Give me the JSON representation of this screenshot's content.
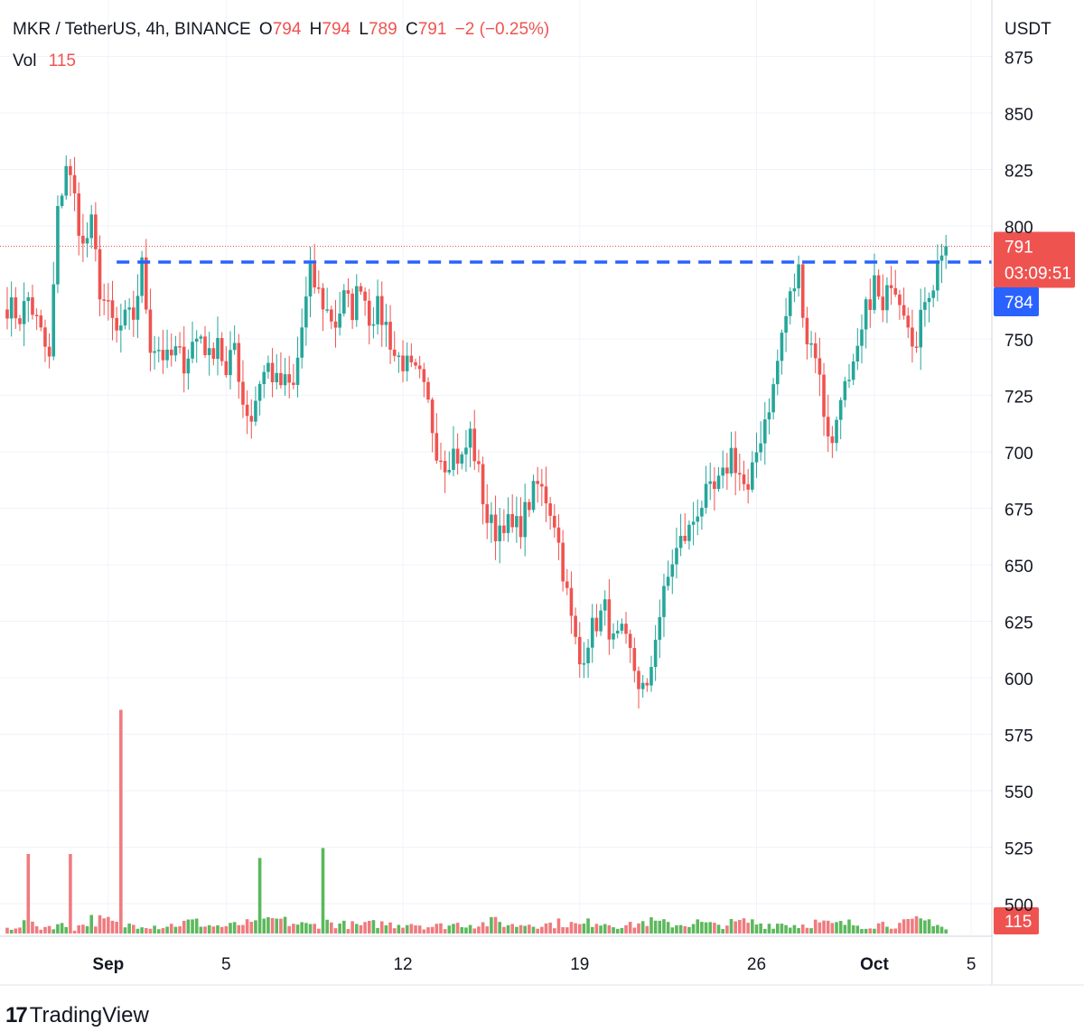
{
  "legend": {
    "symbol": "MKR / TetherUS, 4h, BINANCE",
    "o_label": "O",
    "o_value": "794",
    "h_label": "H",
    "h_value": "794",
    "l_label": "L",
    "l_value": "789",
    "c_label": "C",
    "c_value": "791",
    "change": "−2 (−0.25%)",
    "vol_label": "Vol",
    "vol_value": "115"
  },
  "footer": {
    "logo_mark": "17",
    "brand": "TradingView"
  },
  "colors": {
    "up": "#26a69a",
    "down": "#ef5350",
    "up_vol": "#5cb85c",
    "down_vol": "#ef7b7f",
    "dashed_line": "#2962ff",
    "grid": "#f0f3fa",
    "text": "#131722"
  },
  "chart_data": {
    "type": "candlestick",
    "currency_label": "USDT",
    "y_ticks": [
      875,
      850,
      825,
      800,
      750,
      725,
      700,
      675,
      650,
      625,
      600,
      575,
      550,
      525,
      500
    ],
    "x_ticks": [
      {
        "label": "Sep",
        "index": 24,
        "bold": true
      },
      {
        "label": "5",
        "index": 52,
        "bold": false
      },
      {
        "label": "12",
        "index": 94,
        "bold": false
      },
      {
        "label": "19",
        "index": 136,
        "bold": false
      },
      {
        "label": "26",
        "index": 178,
        "bold": false
      },
      {
        "label": "Oct",
        "index": 206,
        "bold": true
      },
      {
        "label": "5",
        "index": 229,
        "bold": false
      }
    ],
    "last_price": {
      "value": 791,
      "label": "791",
      "countdown": "03:09:51"
    },
    "dashed_level": {
      "value": 784,
      "label": "784"
    },
    "volume_last_label": "115",
    "close_path": [
      [
        0,
        765
      ],
      [
        3,
        760
      ],
      [
        5,
        768
      ],
      [
        8,
        752
      ],
      [
        10,
        740
      ],
      [
        12,
        805
      ],
      [
        14,
        828
      ],
      [
        16,
        812
      ],
      [
        18,
        790
      ],
      [
        20,
        800
      ],
      [
        22,
        772
      ],
      [
        24,
        762
      ],
      [
        26,
        752
      ],
      [
        28,
        758
      ],
      [
        30,
        760
      ],
      [
        32,
        782
      ],
      [
        34,
        748
      ],
      [
        36,
        746
      ],
      [
        38,
        740
      ],
      [
        40,
        744
      ],
      [
        42,
        740
      ],
      [
        44,
        748
      ],
      [
        46,
        752
      ],
      [
        48,
        741
      ],
      [
        50,
        752
      ],
      [
        52,
        732
      ],
      [
        54,
        748
      ],
      [
        56,
        722
      ],
      [
        58,
        715
      ],
      [
        60,
        732
      ],
      [
        62,
        738
      ],
      [
        64,
        730
      ],
      [
        66,
        730
      ],
      [
        68,
        728
      ],
      [
        70,
        755
      ],
      [
        72,
        778
      ],
      [
        74,
        770
      ],
      [
        76,
        762
      ],
      [
        78,
        757
      ],
      [
        80,
        768
      ],
      [
        82,
        763
      ],
      [
        84,
        776
      ],
      [
        86,
        760
      ],
      [
        88,
        763
      ],
      [
        90,
        756
      ],
      [
        92,
        743
      ],
      [
        94,
        740
      ],
      [
        96,
        735
      ],
      [
        98,
        732
      ],
      [
        100,
        720
      ],
      [
        102,
        702
      ],
      [
        104,
        696
      ],
      [
        106,
        700
      ],
      [
        108,
        696
      ],
      [
        110,
        708
      ],
      [
        112,
        690
      ],
      [
        114,
        670
      ],
      [
        116,
        665
      ],
      [
        118,
        670
      ],
      [
        120,
        665
      ],
      [
        122,
        668
      ],
      [
        124,
        678
      ],
      [
        126,
        685
      ],
      [
        128,
        680
      ],
      [
        130,
        670
      ],
      [
        132,
        648
      ],
      [
        134,
        625
      ],
      [
        136,
        606
      ],
      [
        138,
        618
      ],
      [
        140,
        625
      ],
      [
        142,
        630
      ],
      [
        144,
        615
      ],
      [
        146,
        618
      ],
      [
        148,
        610
      ],
      [
        150,
        598
      ],
      [
        152,
        592
      ],
      [
        154,
        620
      ],
      [
        156,
        636
      ],
      [
        158,
        652
      ],
      [
        160,
        660
      ],
      [
        162,
        665
      ],
      [
        164,
        675
      ],
      [
        166,
        680
      ],
      [
        168,
        682
      ],
      [
        170,
        688
      ],
      [
        172,
        700
      ],
      [
        174,
        690
      ],
      [
        176,
        680
      ],
      [
        178,
        700
      ],
      [
        180,
        715
      ],
      [
        182,
        728
      ],
      [
        184,
        752
      ],
      [
        186,
        768
      ],
      [
        188,
        780
      ],
      [
        190,
        750
      ],
      [
        192,
        745
      ],
      [
        194,
        718
      ],
      [
        196,
        702
      ],
      [
        198,
        728
      ],
      [
        200,
        728
      ],
      [
        202,
        742
      ],
      [
        204,
        762
      ],
      [
        206,
        775
      ],
      [
        208,
        760
      ],
      [
        210,
        778
      ],
      [
        212,
        770
      ],
      [
        214,
        760
      ],
      [
        216,
        745
      ],
      [
        218,
        770
      ],
      [
        220,
        775
      ],
      [
        222,
        790
      ],
      [
        223,
        791
      ]
    ],
    "volume_path": [
      [
        0,
        5
      ],
      [
        4,
        10
      ],
      [
        8,
        6
      ],
      [
        12,
        9
      ],
      [
        16,
        5
      ],
      [
        20,
        14
      ],
      [
        24,
        12
      ],
      [
        28,
        8
      ],
      [
        32,
        10
      ],
      [
        36,
        7
      ],
      [
        40,
        9
      ],
      [
        44,
        12
      ],
      [
        48,
        8
      ],
      [
        52,
        7
      ],
      [
        56,
        10
      ],
      [
        60,
        9
      ],
      [
        64,
        14
      ],
      [
        68,
        10
      ],
      [
        72,
        8
      ],
      [
        76,
        11
      ],
      [
        80,
        9
      ],
      [
        84,
        8
      ],
      [
        88,
        10
      ],
      [
        92,
        9
      ],
      [
        96,
        11
      ],
      [
        100,
        7
      ],
      [
        104,
        8
      ],
      [
        108,
        10
      ],
      [
        112,
        9
      ],
      [
        116,
        12
      ],
      [
        120,
        8
      ],
      [
        124,
        10
      ],
      [
        128,
        9
      ],
      [
        132,
        11
      ],
      [
        136,
        8
      ],
      [
        140,
        13
      ],
      [
        144,
        9
      ],
      [
        148,
        8
      ],
      [
        152,
        12
      ],
      [
        156,
        10
      ],
      [
        160,
        9
      ],
      [
        164,
        11
      ],
      [
        168,
        8
      ],
      [
        172,
        10
      ],
      [
        176,
        12
      ],
      [
        180,
        9
      ],
      [
        184,
        10
      ],
      [
        188,
        8
      ],
      [
        192,
        11
      ],
      [
        196,
        9
      ],
      [
        200,
        10
      ],
      [
        204,
        8
      ],
      [
        208,
        10
      ],
      [
        212,
        9
      ],
      [
        216,
        12
      ],
      [
        220,
        13
      ],
      [
        223,
        4
      ]
    ],
    "spikes": [
      {
        "index": 5,
        "volume": 80,
        "down": true
      },
      {
        "index": 15,
        "volume": 80,
        "down": true
      },
      {
        "index": 27,
        "volume": 225,
        "down": true
      },
      {
        "index": 60,
        "volume": 76,
        "down": false
      },
      {
        "index": 75,
        "volume": 86,
        "down": false
      }
    ]
  }
}
